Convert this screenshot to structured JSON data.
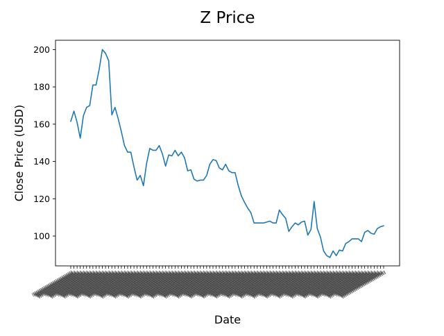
{
  "chart_data": {
    "type": "line",
    "title": "Z Price",
    "xlabel": "Date",
    "ylabel": "Close Price (USD)",
    "ylim": [
      84,
      205
    ],
    "yticks": [
      100,
      120,
      140,
      160,
      180,
      200
    ],
    "grid": false,
    "legend": "none",
    "line_color": "#1f77b4",
    "x_tick_labels_note": "dense, rotated, overlapping date labels (illegible)",
    "series": [
      {
        "values": [
          161.5,
          167.0,
          161.0,
          152.5,
          164.5,
          169.0,
          170.0,
          181.0,
          181.0,
          189.5,
          200.0,
          198.0,
          194.0,
          165.0,
          169.0,
          163.0,
          156.0,
          148.5,
          145.0,
          145.0,
          137.0,
          130.0,
          132.5,
          127.0,
          139.0,
          147.0,
          146.0,
          146.0,
          148.5,
          144.0,
          137.5,
          143.5,
          143.0,
          146.0,
          143.0,
          145.0,
          142.0,
          135.0,
          135.5,
          130.5,
          129.5,
          130.0,
          130.0,
          132.5,
          138.5,
          141.0,
          140.5,
          136.5,
          135.5,
          138.5,
          135.0,
          134.0,
          134.0,
          127.0,
          121.5,
          118.0,
          115.0,
          112.5,
          107.0,
          107.0,
          107.0,
          107.0,
          107.5,
          108.0,
          107.0,
          107.0,
          114.0,
          111.5,
          109.5,
          102.5,
          105.0,
          107.0,
          106.0,
          107.5,
          108.0,
          100.5,
          103.5,
          118.5,
          104.0,
          99.5,
          92.0,
          89.5,
          88.5,
          92.0,
          89.5,
          92.5,
          92.0,
          96.0,
          97.0,
          98.5,
          98.5,
          98.5,
          97.0,
          102.0,
          103.0,
          101.5,
          101.0,
          104.0,
          105.0,
          105.5
        ]
      }
    ]
  }
}
